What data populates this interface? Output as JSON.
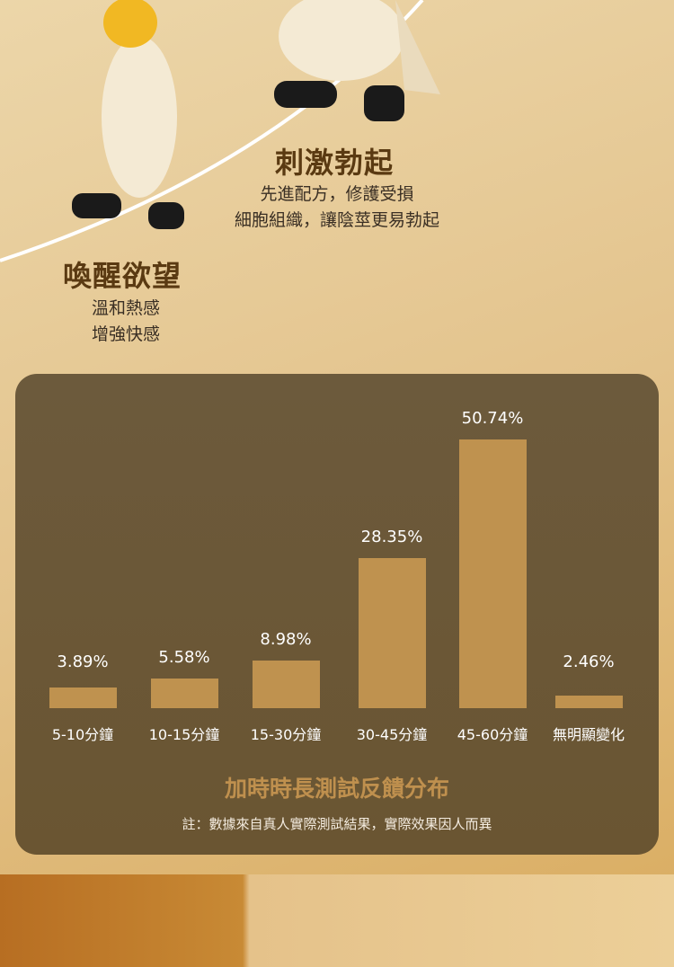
{
  "features": [
    {
      "title": "刺激勃起",
      "lines": [
        "先進配方，修護受損",
        "細胞組織，讓陰莖更易勃起"
      ]
    },
    {
      "title": "喚醒欲望",
      "lines": [
        "溫和熱感",
        "增強快感"
      ]
    }
  ],
  "colors": {
    "panel": "#6b5837",
    "bar": "#bf924f",
    "heading": "#5a3a12",
    "chart_title": "#bf904e"
  },
  "chart_data": {
    "type": "bar",
    "title": "加時時長測試反饋分布",
    "note": "註：數據來自真人實際測試結果，實際效果因人而異",
    "categories": [
      "5-10分鐘",
      "10-15分鐘",
      "15-30分鐘",
      "30-45分鐘",
      "45-60分鐘",
      "無明顯變化"
    ],
    "values": [
      3.89,
      5.58,
      8.98,
      28.35,
      50.74,
      2.46
    ],
    "labels": [
      "3.89%",
      "5.58%",
      "8.98%",
      "28.35%",
      "50.74%",
      "2.46%"
    ],
    "grid": false,
    "ylim": [
      0,
      50.74
    ]
  }
}
